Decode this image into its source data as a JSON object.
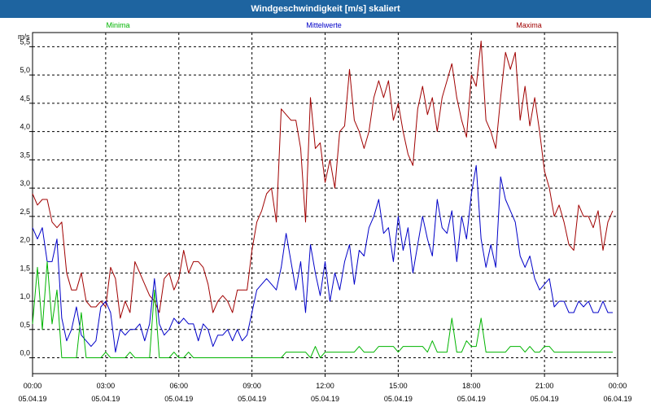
{
  "window": {
    "title": "Windgeschwindigkeit [m/s] skaliert"
  },
  "colors": {
    "titlebar": "#1e64a0",
    "minima": "#00b400",
    "mittelwerte": "#0000c8",
    "maxima": "#a00000",
    "grid": "#000000"
  },
  "chart_data": {
    "type": "line",
    "title": "Windgeschwindigkeit [m/s] skaliert",
    "ylabel": "m/s",
    "xlabel": "",
    "ylim": [
      -0.28,
      5.75
    ],
    "xlim": [
      0,
      24
    ],
    "grid": true,
    "y_ticks": [
      0.0,
      0.5,
      1.0,
      1.5,
      2.0,
      2.5,
      3.0,
      3.5,
      4.0,
      4.5,
      5.0,
      5.5
    ],
    "y_tick_labels": [
      "0,0",
      "0,5",
      "1,0",
      "1,5",
      "2,0",
      "2,5",
      "3,0",
      "3,5",
      "4,0",
      "4,5",
      "5,0",
      "5,5"
    ],
    "x_ticks": [
      0,
      3,
      6,
      9,
      12,
      15,
      18,
      21,
      24
    ],
    "x_tick_times": [
      "00:00",
      "03:00",
      "06:00",
      "09:00",
      "12:00",
      "15:00",
      "18:00",
      "21:00",
      "00:00"
    ],
    "x_tick_dates": [
      "05.04.19",
      "05.04.19",
      "05.04.19",
      "05.04.19",
      "05.04.19",
      "05.04.19",
      "05.04.19",
      "05.04.19",
      "06.04.19"
    ],
    "legend": [
      "Minima",
      "Mittelwerte",
      "Maxima"
    ],
    "x": [
      0.0,
      0.2,
      0.4,
      0.6,
      0.8,
      1.0,
      1.2,
      1.4,
      1.6,
      1.8,
      2.0,
      2.2,
      2.4,
      2.6,
      2.8,
      3.0,
      3.2,
      3.4,
      3.6,
      3.8,
      4.0,
      4.2,
      4.4,
      4.6,
      4.8,
      5.0,
      5.2,
      5.4,
      5.6,
      5.8,
      6.0,
      6.2,
      6.4,
      6.6,
      6.8,
      7.0,
      7.2,
      7.4,
      7.6,
      7.8,
      8.0,
      8.2,
      8.4,
      8.6,
      8.8,
      9.0,
      9.2,
      9.4,
      9.6,
      9.8,
      10.0,
      10.2,
      10.4,
      10.6,
      10.8,
      11.0,
      11.2,
      11.4,
      11.6,
      11.8,
      12.0,
      12.2,
      12.4,
      12.6,
      12.8,
      13.0,
      13.2,
      13.4,
      13.6,
      13.8,
      14.0,
      14.2,
      14.4,
      14.6,
      14.8,
      15.0,
      15.2,
      15.4,
      15.6,
      15.8,
      16.0,
      16.2,
      16.4,
      16.6,
      16.8,
      17.0,
      17.2,
      17.4,
      17.6,
      17.8,
      18.0,
      18.2,
      18.4,
      18.6,
      18.8,
      19.0,
      19.2,
      19.4,
      19.6,
      19.8,
      20.0,
      20.2,
      20.4,
      20.6,
      20.8,
      21.0,
      21.2,
      21.4,
      21.6,
      21.8,
      22.0,
      22.2,
      22.4,
      22.6,
      22.8,
      23.0,
      23.2,
      23.4,
      23.6,
      23.8
    ],
    "series": [
      {
        "name": "Maxima",
        "values": [
          2.9,
          2.7,
          2.8,
          2.8,
          2.4,
          2.3,
          2.4,
          1.5,
          1.2,
          1.2,
          1.5,
          1.0,
          0.9,
          0.9,
          1.0,
          0.9,
          1.6,
          1.4,
          0.7,
          1.0,
          0.8,
          1.7,
          1.5,
          1.3,
          1.1,
          1.0,
          0.8,
          1.4,
          1.5,
          1.2,
          1.4,
          1.9,
          1.5,
          1.7,
          1.7,
          1.6,
          1.3,
          0.8,
          1.0,
          1.1,
          1.0,
          0.8,
          1.2,
          1.2,
          1.2,
          1.9,
          2.4,
          2.6,
          2.9,
          3.0,
          2.4,
          4.4,
          4.3,
          4.2,
          4.2,
          3.7,
          2.4,
          4.6,
          3.7,
          3.8,
          3.1,
          3.5,
          3.0,
          4.0,
          4.1,
          5.1,
          4.2,
          4.0,
          3.7,
          4.0,
          4.6,
          4.9,
          4.6,
          4.9,
          4.2,
          4.5,
          4.0,
          3.6,
          3.4,
          4.4,
          4.8,
          4.3,
          4.6,
          4.0,
          4.6,
          4.9,
          5.2,
          4.6,
          4.2,
          3.9,
          5.0,
          4.8,
          5.6,
          4.2,
          4.0,
          3.7,
          4.6,
          5.4,
          5.1,
          5.4,
          4.2,
          4.8,
          4.1,
          4.6,
          4.0,
          3.3,
          3.0,
          2.5,
          2.7,
          2.4,
          2.0,
          1.9,
          2.7,
          2.5,
          2.5,
          2.3,
          2.6,
          1.9,
          2.4,
          2.6
        ]
      },
      {
        "name": "Mittelwerte",
        "values": [
          2.3,
          2.1,
          2.3,
          1.7,
          1.7,
          2.1,
          0.7,
          0.3,
          0.5,
          0.9,
          0.4,
          0.3,
          0.2,
          0.3,
          0.9,
          1.0,
          0.8,
          0.1,
          0.5,
          0.4,
          0.5,
          0.5,
          0.6,
          0.3,
          0.6,
          1.4,
          0.6,
          0.4,
          0.5,
          0.7,
          0.6,
          0.7,
          0.6,
          0.6,
          0.3,
          0.6,
          0.5,
          0.2,
          0.4,
          0.4,
          0.5,
          0.3,
          0.5,
          0.3,
          0.4,
          0.8,
          1.2,
          1.3,
          1.4,
          1.3,
          1.2,
          1.6,
          2.2,
          1.7,
          1.2,
          1.7,
          0.8,
          2.0,
          1.5,
          1.1,
          1.7,
          1.0,
          1.5,
          1.2,
          1.7,
          2.0,
          1.3,
          1.9,
          1.8,
          2.3,
          2.5,
          2.8,
          2.2,
          2.3,
          1.7,
          2.5,
          1.9,
          2.3,
          1.5,
          2.0,
          2.5,
          2.1,
          1.8,
          2.8,
          2.3,
          2.2,
          2.6,
          1.7,
          2.5,
          2.1,
          2.9,
          3.4,
          2.1,
          1.6,
          2.0,
          1.6,
          3.2,
          2.8,
          2.6,
          2.4,
          1.8,
          1.6,
          1.8,
          1.4,
          1.2,
          1.3,
          1.4,
          0.9,
          1.0,
          1.0,
          0.8,
          0.8,
          1.0,
          0.9,
          1.0,
          0.8,
          0.8,
          1.0,
          0.8,
          0.8
        ]
      },
      {
        "name": "Minima",
        "values": [
          0.6,
          1.6,
          0.5,
          1.7,
          0.6,
          1.2,
          0.0,
          0.0,
          0.0,
          0.0,
          0.8,
          0.0,
          0.0,
          0.0,
          0.0,
          0.1,
          0.0,
          0.0,
          0.0,
          0.0,
          0.1,
          0.0,
          0.0,
          0.0,
          0.0,
          1.2,
          0.0,
          0.0,
          0.0,
          0.1,
          0.0,
          0.0,
          0.1,
          0.0,
          0.0,
          0.0,
          0.0,
          0.0,
          0.0,
          0.0,
          0.0,
          0.0,
          0.0,
          0.0,
          0.0,
          0.0,
          0.0,
          0.0,
          0.0,
          0.0,
          0.0,
          0.0,
          0.1,
          0.1,
          0.1,
          0.1,
          0.1,
          0.0,
          0.2,
          0.0,
          0.1,
          0.1,
          0.1,
          0.1,
          0.1,
          0.1,
          0.1,
          0.2,
          0.1,
          0.1,
          0.1,
          0.2,
          0.2,
          0.2,
          0.2,
          0.1,
          0.2,
          0.2,
          0.2,
          0.2,
          0.2,
          0.1,
          0.3,
          0.1,
          0.1,
          0.1,
          0.7,
          0.1,
          0.1,
          0.3,
          0.2,
          0.2,
          0.7,
          0.1,
          0.1,
          0.1,
          0.1,
          0.1,
          0.2,
          0.2,
          0.2,
          0.1,
          0.2,
          0.1,
          0.1,
          0.2,
          0.2,
          0.1,
          0.1,
          0.1,
          0.1,
          0.1,
          0.1,
          0.1,
          0.1,
          0.1,
          0.1,
          0.1,
          0.1,
          0.1
        ]
      }
    ]
  }
}
